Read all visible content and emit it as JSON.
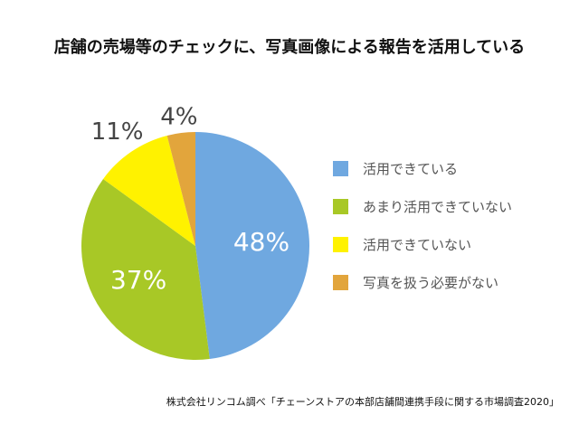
{
  "chart_data": {
    "type": "pie",
    "title": "店舗の売場等のチェックに、写真画像による報告を活用している",
    "categories": [
      "活用できている",
      "あまり活用できていない",
      "活用できていない",
      "写真を扱う必要がない"
    ],
    "values": [
      48,
      37,
      11,
      4
    ],
    "labels": [
      "48%",
      "37%",
      "11%",
      "4%"
    ],
    "colors": [
      "#6fa8e0",
      "#a8c826",
      "#fff200",
      "#e2a53c"
    ],
    "legend_position": "right",
    "source": "株式会社リンコム調べ「チェーンストアの本部店舗間連携手段に関する市場調査2020」"
  }
}
